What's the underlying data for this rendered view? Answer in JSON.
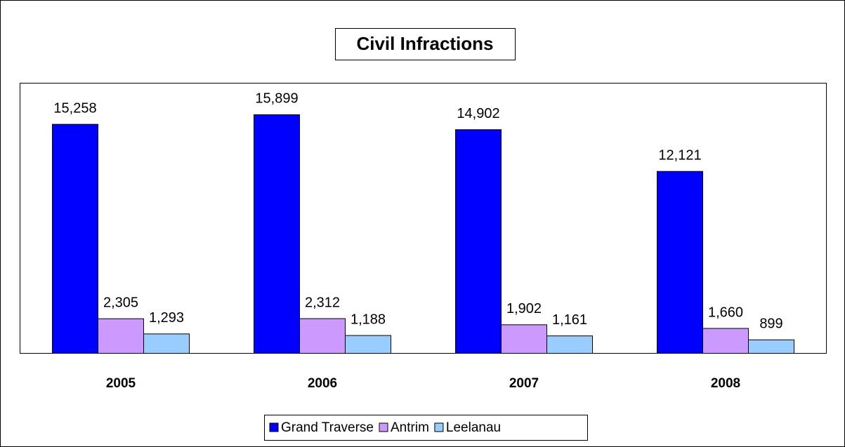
{
  "chart_data": {
    "type": "bar",
    "title": "Civil Infractions",
    "categories": [
      "2005",
      "2006",
      "2007",
      "2008"
    ],
    "series": [
      {
        "name": "Grand Traverse",
        "color": "#0000ff",
        "values": [
          15258,
          15899,
          14902,
          12121
        ],
        "value_labels": [
          "15,258",
          "15,899",
          "14,902",
          "12,121"
        ]
      },
      {
        "name": "Antrim",
        "color": "#cc99ff",
        "values": [
          2305,
          2312,
          1902,
          1660
        ],
        "value_labels": [
          "2,305",
          "2,312",
          "1,902",
          "1,660"
        ]
      },
      {
        "name": "Leelanau",
        "color": "#99ccff",
        "values": [
          1293,
          1188,
          1161,
          899
        ],
        "value_labels": [
          "1,293",
          "1,188",
          "1,161",
          "899"
        ]
      }
    ],
    "ylim": [
      0,
      18000
    ],
    "legend": "bottom"
  }
}
